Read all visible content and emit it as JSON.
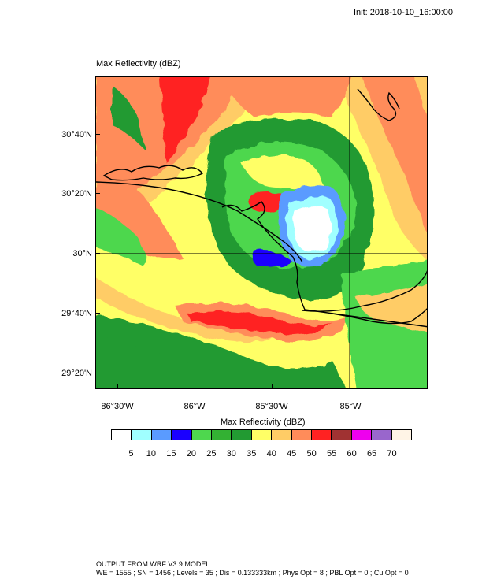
{
  "header": {
    "init_time": "Init: 2018-10-10_16:00:00"
  },
  "plot": {
    "title": "Max Reflectivity   (dBZ)",
    "lat_labels": [
      "30°40'N",
      "30°20'N",
      "30°N",
      "29°40'N",
      "29°20'N"
    ],
    "lon_labels": [
      "86°30'W",
      "86°W",
      "85°30'W",
      "85°W"
    ]
  },
  "colorbar": {
    "title": "Max Reflectivity   (dBZ)",
    "colors": [
      "#ffffff",
      "#a0ffff",
      "#5a9bff",
      "#1a00ff",
      "#4ed74e",
      "#33b133",
      "#229a32",
      "#ffff66",
      "#ffcc66",
      "#ff8c5a",
      "#ff2222",
      "#a03232",
      "#ee00ee",
      "#9966cc",
      "#fff4e6"
    ],
    "labels": [
      "5",
      "10",
      "15",
      "20",
      "25",
      "30",
      "35",
      "40",
      "45",
      "50",
      "55",
      "60",
      "65",
      "70"
    ]
  },
  "footer": {
    "line1": "OUTPUT FROM WRF V3.9 MODEL",
    "line2": "WE = 1555 ; SN = 1456 ; Levels = 35 ; Dis = 0.133333km ; Phys Opt = 8 ; PBL Opt = 0 ; Cu Opt = 0"
  }
}
